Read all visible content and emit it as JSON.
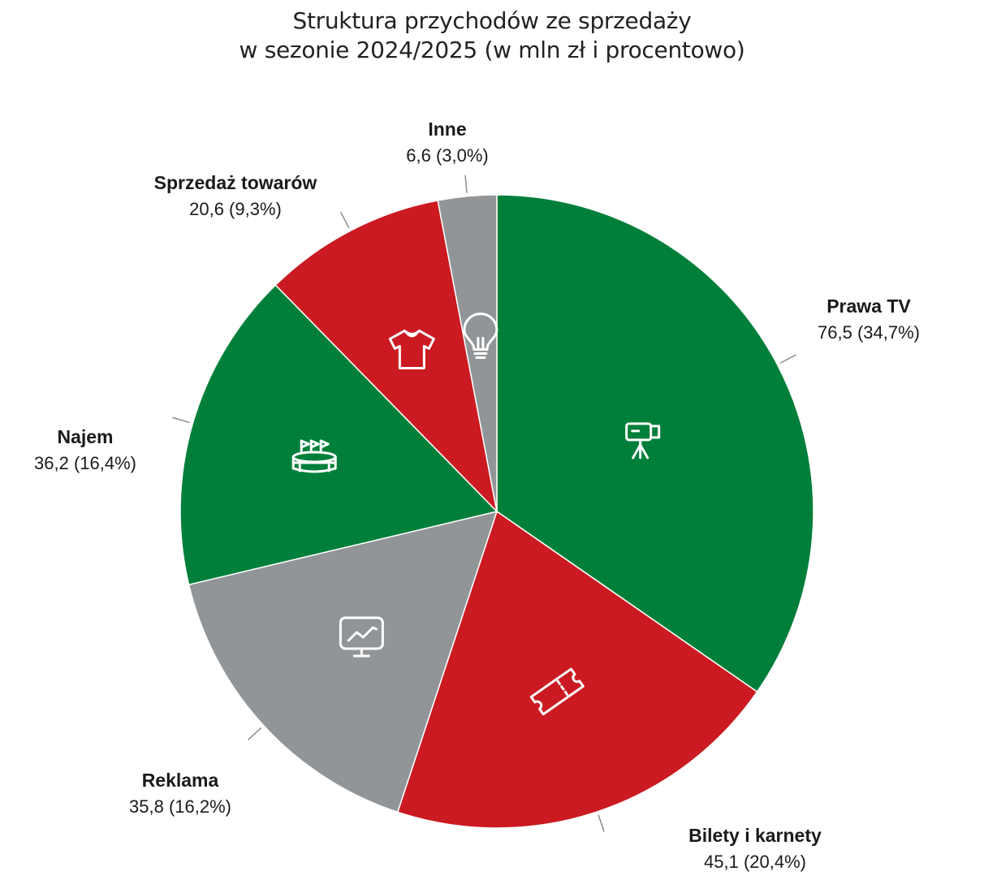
{
  "chart_data": {
    "type": "pie",
    "title_line1": "Struktura przychodów ze sprzedaży",
    "title_line2": "w sezonie 2024/2025 (w mln zł i procentowo)",
    "slices": [
      {
        "name": "Prawa TV",
        "value": 76.5,
        "value_label": "76,5 (34,7%)",
        "color": "#007f3a",
        "icon": "video-camera-icon"
      },
      {
        "name": "Bilety i karnety",
        "value": 45.1,
        "value_label": "45,1 (20,4%)",
        "color": "#cb1a21",
        "icon": "ticket-icon"
      },
      {
        "name": "Reklama",
        "value": 35.8,
        "value_label": "35,8 (16,2%)",
        "color": "#929598",
        "icon": "monitor-chart-icon"
      },
      {
        "name": "Najem",
        "value": 36.2,
        "value_label": "36,2 (16,4%)",
        "color": "#007f3a",
        "icon": "stadium-icon"
      },
      {
        "name": "Sprzedaż towarów",
        "value": 20.6,
        "value_label": "20,6 (9,3%)",
        "color": "#cb1a21",
        "icon": "tshirt-icon"
      },
      {
        "name": "Inne",
        "value": 6.6,
        "value_label": "6,6 (3,0%)",
        "color": "#929598",
        "icon": "lightbulb-icon"
      }
    ]
  }
}
